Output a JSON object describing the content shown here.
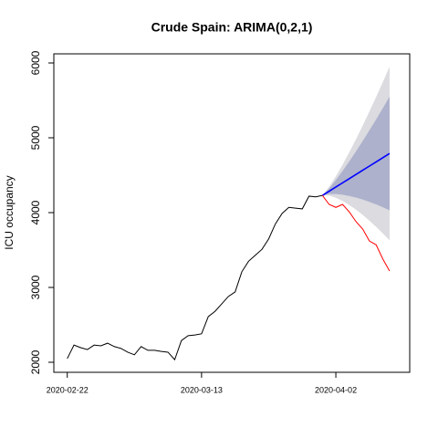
{
  "chart_data": {
    "type": "line",
    "title": "Crude Spain: ARIMA(0,2,1)",
    "ylabel": "ICU occupancy",
    "xlim": [
      "2020-02-20",
      "2020-04-13"
    ],
    "xticks": [
      "2020-02-22",
      "2020-03-13",
      "2020-04-02"
    ],
    "ylim": [
      1866,
      6122
    ],
    "yticks": [
      2000,
      3000,
      4000,
      5000,
      6000
    ],
    "bands": [
      {
        "color": "#dbdbe0",
        "x": [
          "2020-03-31",
          "2020-04-01",
          "2020-04-02",
          "2020-04-03",
          "2020-04-04",
          "2020-04-05",
          "2020-04-06",
          "2020-04-07",
          "2020-04-08",
          "2020-04-09",
          "2020-04-10"
        ],
        "lower": [
          4230,
          4228,
          4199,
          4156,
          4101,
          4039,
          3969,
          3892,
          3810,
          3722,
          3630
        ],
        "upper": [
          4230,
          4344,
          4485,
          4640,
          4807,
          4981,
          5163,
          5352,
          5546,
          5746,
          5950
        ]
      },
      {
        "color": "#adb1cc",
        "x": [
          "2020-03-31",
          "2020-04-01",
          "2020-04-02",
          "2020-04-03",
          "2020-04-04",
          "2020-04-05",
          "2020-04-06",
          "2020-04-07",
          "2020-04-08",
          "2020-04-09",
          "2020-04-10"
        ],
        "lower": [
          4230,
          4248,
          4249,
          4239,
          4223,
          4201,
          4175,
          4144,
          4110,
          4071,
          4030
        ],
        "upper": [
          4230,
          4324,
          4435,
          4557,
          4685,
          4819,
          4957,
          5100,
          5246,
          5397,
          5550
        ]
      }
    ],
    "series": [
      {
        "color": "#000000",
        "x": [
          "2020-02-22",
          "2020-02-23",
          "2020-02-24",
          "2020-02-25",
          "2020-02-26",
          "2020-02-27",
          "2020-02-28",
          "2020-02-29",
          "2020-03-01",
          "2020-03-02",
          "2020-03-03",
          "2020-03-04",
          "2020-03-05",
          "2020-03-06",
          "2020-03-07",
          "2020-03-08",
          "2020-03-09",
          "2020-03-10",
          "2020-03-11",
          "2020-03-12",
          "2020-03-13",
          "2020-03-14",
          "2020-03-15",
          "2020-03-16",
          "2020-03-17",
          "2020-03-18",
          "2020-03-19",
          "2020-03-20",
          "2020-03-21",
          "2020-03-22",
          "2020-03-23",
          "2020-03-24",
          "2020-03-25",
          "2020-03-26",
          "2020-03-27",
          "2020-03-28",
          "2020-03-29",
          "2020-03-30",
          "2020-03-31"
        ],
        "values": [
          2050,
          2230,
          2195,
          2170,
          2230,
          2220,
          2255,
          2210,
          2185,
          2135,
          2100,
          2210,
          2160,
          2160,
          2145,
          2135,
          2035,
          2290,
          2355,
          2365,
          2380,
          2610,
          2680,
          2780,
          2880,
          2940,
          3210,
          3350,
          3430,
          3510,
          3650,
          3850,
          3990,
          4070,
          4060,
          4050,
          4220,
          4210,
          4230
        ]
      },
      {
        "color": "#0000ff",
        "x": [
          "2020-03-31",
          "2020-04-01",
          "2020-04-02",
          "2020-04-03",
          "2020-04-04",
          "2020-04-05",
          "2020-04-06",
          "2020-04-07",
          "2020-04-08",
          "2020-04-09",
          "2020-04-10"
        ],
        "values": [
          4230,
          4286,
          4342,
          4398,
          4454,
          4510,
          4566,
          4622,
          4678,
          4734,
          4790
        ]
      },
      {
        "color": "#ff0000",
        "x": [
          "2020-03-31",
          "2020-04-01",
          "2020-04-02",
          "2020-04-03",
          "2020-04-04",
          "2020-04-05",
          "2020-04-06",
          "2020-04-07",
          "2020-04-08",
          "2020-04-09",
          "2020-04-10"
        ],
        "values": [
          4230,
          4110,
          4070,
          4110,
          4010,
          3880,
          3780,
          3620,
          3570,
          3380,
          3220
        ]
      }
    ]
  }
}
